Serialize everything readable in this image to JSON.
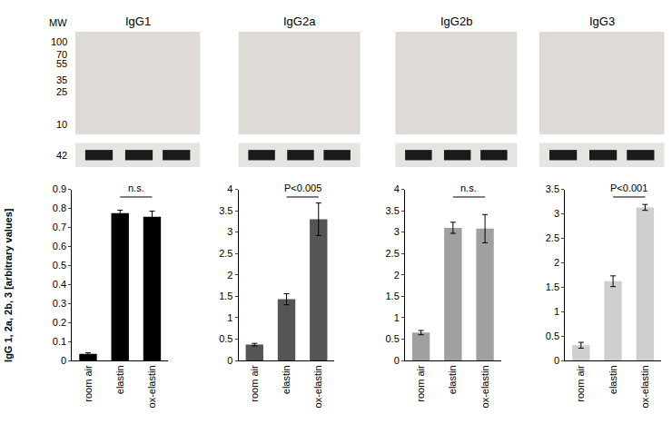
{
  "blots": {
    "mw_label": "MW",
    "mw_markers": [
      100,
      70,
      55,
      35,
      25,
      10
    ],
    "loading_control_mw": 42
  },
  "chart_data": [
    {
      "type": "bar",
      "title": "IgG1",
      "y_label": "IgG 1, 2a, 2b, 3 [arbitrary values]",
      "categories": [
        "room air",
        "elastin",
        "ox-elastin"
      ],
      "values": [
        0.035,
        0.775,
        0.755
      ],
      "errors": [
        0.005,
        0.015,
        0.03
      ],
      "color": "#000000",
      "ylim": [
        0,
        0.9
      ],
      "yticks": [
        0,
        0.1,
        0.2,
        0.3,
        0.4,
        0.5,
        0.6,
        0.7,
        0.8,
        0.9
      ],
      "grid": false,
      "annotations": [
        {
          "text": "n.s.",
          "from": "elastin",
          "to": "ox-elastin"
        }
      ]
    },
    {
      "type": "bar",
      "title": "IgG2a",
      "categories": [
        "room air",
        "elastin",
        "ox-elastin"
      ],
      "values": [
        0.37,
        1.43,
        3.3
      ],
      "errors": [
        0.03,
        0.13,
        0.38
      ],
      "color": "#555555",
      "ylim": [
        0,
        4
      ],
      "yticks": [
        0,
        0.5,
        1,
        1.5,
        2,
        2.5,
        3,
        3.5,
        4
      ],
      "grid": false,
      "annotations": [
        {
          "text": "P<0.005",
          "from": "elastin",
          "to": "ox-elastin"
        }
      ]
    },
    {
      "type": "bar",
      "title": "IgG2b",
      "categories": [
        "room air",
        "elastin",
        "ox-elastin"
      ],
      "values": [
        0.65,
        3.1,
        3.08
      ],
      "errors": [
        0.05,
        0.13,
        0.33
      ],
      "color": "#a0a0a0",
      "ylim": [
        0,
        4
      ],
      "yticks": [
        0,
        0.5,
        1,
        1.5,
        2,
        2.5,
        3,
        3.5,
        4
      ],
      "grid": false,
      "annotations": [
        {
          "text": "n.s.",
          "from": "elastin",
          "to": "ox-elastin"
        }
      ]
    },
    {
      "type": "bar",
      "title": "IgG3",
      "categories": [
        "room air",
        "elastin",
        "ox-elastin"
      ],
      "values": [
        0.31,
        1.62,
        3.13
      ],
      "errors": [
        0.06,
        0.11,
        0.06
      ],
      "color": "#cfcfcf",
      "ylim": [
        0,
        3.5
      ],
      "yticks": [
        0,
        0.5,
        1,
        1.5,
        2,
        2.5,
        3,
        3.5
      ],
      "grid": false,
      "annotations": [
        {
          "text": "P<0.001",
          "from": "elastin",
          "to": "ox-elastin"
        }
      ]
    }
  ]
}
